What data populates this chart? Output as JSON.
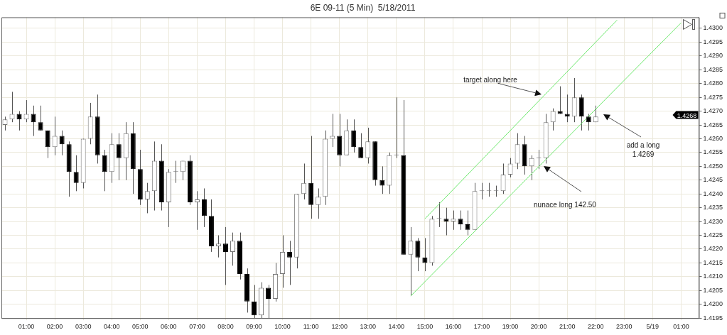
{
  "chart_data": {
    "type": "candlestick",
    "title": "6E 09-11 (5 Min)  5/18/2011",
    "categories": [
      null,
      null,
      null,
      "01:00",
      null,
      null,
      null,
      "02:00",
      null,
      null,
      null,
      "03:00",
      null,
      null,
      null,
      "04:00",
      null,
      null,
      null,
      "05:00",
      null,
      null,
      null,
      "06:00",
      null,
      null,
      null,
      "07:00",
      null,
      null,
      null,
      "08:00",
      null,
      null,
      null,
      "09:00",
      null,
      null,
      null,
      "10:00",
      null,
      null,
      null,
      "11:00",
      null,
      null,
      null,
      "12:00",
      null,
      null,
      null,
      "13:00",
      null,
      null,
      null,
      "14:00",
      null,
      null,
      null,
      "15:00",
      null,
      null,
      null,
      "16:00",
      null,
      null,
      null,
      "17:00",
      null,
      null,
      null,
      "19:00",
      null,
      null,
      null,
      "20:00",
      null,
      null,
      null,
      "21:00",
      null,
      null,
      null,
      "22:00",
      null,
      null,
      null,
      "23:00",
      null,
      null,
      null,
      "5/19",
      null,
      null,
      null,
      "01:00",
      null,
      null
    ],
    "ohlc": [
      [
        1.4265,
        1.4268,
        1.4263,
        1.4267
      ],
      [
        1.4267,
        1.4277,
        1.4266,
        1.4269
      ],
      [
        1.4269,
        1.427,
        1.4263,
        1.4267
      ],
      [
        1.4267,
        1.4274,
        1.4266,
        1.4269
      ],
      [
        1.4269,
        1.4272,
        1.4261,
        1.4266
      ],
      [
        1.4266,
        1.4272,
        1.4263,
        1.4263
      ],
      [
        1.4263,
        1.4263,
        1.4253,
        1.4257
      ],
      [
        1.4257,
        1.4268,
        1.4254,
        1.4261
      ],
      [
        1.4261,
        1.4263,
        1.4254,
        1.4258
      ],
      [
        1.4258,
        1.4259,
        1.4239,
        1.4248
      ],
      [
        1.4248,
        1.4254,
        1.4241,
        1.4244
      ],
      [
        1.4244,
        1.426,
        1.4242,
        1.426
      ],
      [
        1.426,
        1.4273,
        1.4258,
        1.4268
      ],
      [
        1.4268,
        1.4276,
        1.4251,
        1.4254
      ],
      [
        1.4254,
        1.4256,
        1.4241,
        1.4248
      ],
      [
        1.4248,
        1.4262,
        1.4244,
        1.4258
      ],
      [
        1.4258,
        1.4262,
        1.4245,
        1.4253
      ],
      [
        1.4253,
        1.4266,
        1.4245,
        1.4262
      ],
      [
        1.4262,
        1.4266,
        1.424,
        1.4249
      ],
      [
        1.4249,
        1.4256,
        1.4236,
        1.4238
      ],
      [
        1.4238,
        1.4244,
        1.4233,
        1.4241
      ],
      [
        1.4241,
        1.4259,
        1.4234,
        1.4252
      ],
      [
        1.4252,
        1.4258,
        1.4234,
        1.4237
      ],
      [
        1.4237,
        1.4249,
        1.4228,
        1.4248
      ],
      [
        1.4248,
        1.4252,
        1.4244,
        1.4248
      ],
      [
        1.4248,
        1.4252,
        1.4245,
        1.4252
      ],
      [
        1.4252,
        1.4254,
        1.4236,
        1.4237
      ],
      [
        1.4237,
        1.4241,
        1.4227,
        1.4238
      ],
      [
        1.4238,
        1.4242,
        1.4228,
        1.4232
      ],
      [
        1.4232,
        1.4238,
        1.4219,
        1.4221
      ],
      [
        1.4221,
        1.4225,
        1.4217,
        1.4222
      ],
      [
        1.4222,
        1.4228,
        1.4207,
        1.4219
      ],
      [
        1.4219,
        1.4226,
        1.4214,
        1.4223
      ],
      [
        1.4223,
        1.4226,
        1.4209,
        1.4211
      ],
      [
        1.4211,
        1.4213,
        1.4197,
        1.4201
      ],
      [
        1.4201,
        1.4207,
        1.4195,
        1.4196
      ],
      [
        1.4196,
        1.4208,
        1.4195,
        1.4206
      ],
      [
        1.4206,
        1.4207,
        1.4195,
        1.4202
      ],
      [
        1.4202,
        1.4215,
        1.4201,
        1.4211
      ],
      [
        1.4211,
        1.4225,
        1.4206,
        1.4219
      ],
      [
        1.4219,
        1.4223,
        1.4207,
        1.4217
      ],
      [
        1.4217,
        1.424,
        1.4213,
        1.424
      ],
      [
        1.424,
        1.4251,
        1.4238,
        1.4244
      ],
      [
        1.4244,
        1.4261,
        1.4231,
        1.4236
      ],
      [
        1.4236,
        1.4242,
        1.4231,
        1.4239
      ],
      [
        1.4239,
        1.4263,
        1.4236,
        1.426
      ],
      [
        1.426,
        1.4269,
        1.4257,
        1.4261
      ],
      [
        1.4261,
        1.4269,
        1.425,
        1.4254
      ],
      [
        1.4254,
        1.4267,
        1.4254,
        1.4263
      ],
      [
        1.4263,
        1.4267,
        1.4255,
        1.4257
      ],
      [
        1.4257,
        1.4262,
        1.4253,
        1.4253
      ],
      [
        1.4253,
        1.4264,
        1.4251,
        1.4259
      ],
      [
        1.4259,
        1.4259,
        1.4243,
        1.4245
      ],
      [
        1.4245,
        1.425,
        1.424,
        1.4243
      ],
      [
        1.4243,
        1.4255,
        1.424,
        1.4254
      ],
      [
        1.4254,
        1.4275,
        1.4253,
        1.4254
      ],
      [
        1.4254,
        1.4274,
        1.4218,
        1.4218
      ],
      [
        1.4218,
        1.4228,
        1.4203,
        1.4223
      ],
      [
        1.4223,
        1.4224,
        1.4212,
        1.4217
      ],
      [
        1.4217,
        1.4224,
        1.4212,
        1.4215
      ],
      [
        1.4215,
        1.4232,
        1.4214,
        1.4231
      ],
      [
        1.4231,
        1.4237,
        1.4228,
        1.4231
      ],
      [
        1.4231,
        1.4235,
        1.4225,
        1.423
      ],
      [
        1.423,
        1.4234,
        1.4227,
        1.4231
      ],
      [
        1.4231,
        1.4234,
        1.4227,
        1.4229
      ],
      [
        1.4229,
        1.4234,
        1.4225,
        1.4227
      ],
      [
        1.4227,
        1.4244,
        1.4227,
        1.4241
      ],
      [
        1.4241,
        1.4244,
        1.4238,
        1.4241
      ],
      [
        1.4241,
        1.4244,
        1.4239,
        1.4241
      ],
      [
        1.4241,
        1.4243,
        1.4239,
        1.4241
      ],
      [
        1.4241,
        1.4251,
        1.424,
        1.4247
      ],
      [
        1.4247,
        1.4253,
        1.4246,
        1.4251
      ],
      [
        1.4251,
        1.4262,
        1.4249,
        1.4258
      ],
      [
        1.4258,
        1.4261,
        1.4247,
        1.425
      ],
      [
        1.425,
        1.4254,
        1.4245,
        1.4253
      ],
      [
        1.4253,
        1.4256,
        1.4249,
        1.4253
      ],
      [
        1.4253,
        1.4269,
        1.4251,
        1.4266
      ],
      [
        1.4266,
        1.4271,
        1.4263,
        1.427
      ],
      [
        1.427,
        1.4279,
        1.4269,
        1.4269
      ],
      [
        1.4269,
        1.4276,
        1.4266,
        1.4268
      ],
      [
        1.4268,
        1.4282,
        1.4266,
        1.4275
      ],
      [
        1.4275,
        1.4276,
        1.4263,
        1.4268
      ],
      [
        1.4268,
        1.4269,
        1.4263,
        1.4266
      ],
      [
        1.4266,
        1.4272,
        1.4266,
        1.4268
      ],
      null,
      null,
      null,
      null,
      null,
      null,
      null,
      null,
      null,
      null,
      null,
      null,
      null,
      null
    ],
    "series": [
      {
        "type": "line",
        "color": "#6ee86e",
        "values": [
          null,
          null,
          null,
          null,
          null,
          null,
          null,
          null,
          null,
          null,
          null,
          null,
          null,
          null,
          null,
          null,
          null,
          null,
          null,
          null,
          null,
          null,
          null,
          null,
          null,
          null,
          null,
          null,
          null,
          null,
          null,
          null,
          null,
          null,
          null,
          null,
          null,
          null,
          null,
          null,
          null,
          null,
          null,
          null,
          null,
          null,
          null,
          null,
          null,
          null,
          null,
          null,
          null,
          null,
          null,
          null,
          null,
          null,
          null,
          1.4231,
          null,
          null,
          null,
          null,
          null,
          null,
          null,
          null,
          null,
          null,
          null,
          null,
          null,
          null,
          null,
          null,
          null,
          null,
          null,
          null,
          null,
          null,
          null,
          null,
          null,
          null,
          1.4303,
          null,
          null,
          null,
          null,
          null,
          null,
          null,
          null,
          null,
          null,
          null
        ]
      },
      {
        "type": "line",
        "color": "#6ee86e",
        "values": [
          null,
          null,
          null,
          null,
          null,
          null,
          null,
          null,
          null,
          null,
          null,
          null,
          null,
          null,
          null,
          null,
          null,
          null,
          null,
          null,
          null,
          null,
          null,
          null,
          null,
          null,
          null,
          null,
          null,
          null,
          null,
          null,
          null,
          null,
          null,
          null,
          null,
          null,
          null,
          null,
          null,
          null,
          null,
          null,
          null,
          null,
          null,
          null,
          null,
          null,
          null,
          null,
          null,
          null,
          null,
          null,
          null,
          1.4203,
          null,
          null,
          null,
          null,
          null,
          null,
          null,
          null,
          null,
          null,
          null,
          null,
          null,
          null,
          null,
          null,
          null,
          null,
          null,
          null,
          null,
          null,
          null,
          null,
          null,
          null,
          null,
          null,
          null,
          null,
          null,
          null,
          null,
          null,
          null,
          null,
          null,
          1.4302,
          null,
          null
        ]
      }
    ],
    "ylim": [
      1.4195,
      1.4304
    ],
    "yticks": [
      1.4195,
      {
        "value": 1.42,
        "label": "1.4200"
      },
      1.4205,
      {
        "value": 1.421,
        "label": "1.4210"
      },
      1.4215,
      {
        "value": 1.422,
        "label": "1.4220"
      },
      1.4225,
      {
        "value": 1.423,
        "label": "1.4230"
      },
      1.4235,
      {
        "value": 1.424,
        "label": "1.4240"
      },
      1.4245,
      {
        "value": 1.425,
        "label": "1.4250"
      },
      1.4255,
      {
        "value": 1.426,
        "label": "1.4260"
      },
      1.4265,
      {
        "value": 1.427,
        "label": "1.4270"
      },
      1.4275,
      {
        "value": 1.428,
        "label": "1.4280"
      },
      1.4285,
      {
        "value": 1.429,
        "label": "1.4290"
      },
      1.4295,
      {
        "value": 1.43,
        "label": "1.4300"
      }
    ],
    "grid": true,
    "annotations": [
      "target along here",
      "nunace long 142.50",
      "add a long\n1.4269",
      "1.4268"
    ]
  }
}
